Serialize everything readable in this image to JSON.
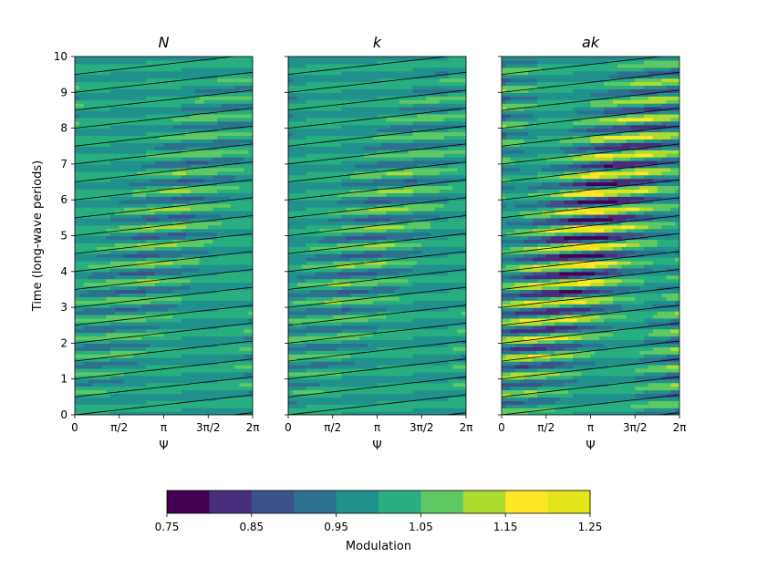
{
  "chart_data": [
    {
      "type": "heatmap",
      "title": "N",
      "xlabel": "Ψ",
      "ylabel": "Time (long-wave periods)",
      "x_ticks": [
        "0",
        "π/2",
        "π",
        "3π/2",
        "2π"
      ],
      "y_ticks": [
        "0",
        "1",
        "2",
        "3",
        "4",
        "5",
        "6",
        "7",
        "8",
        "9",
        "10"
      ],
      "xlim": [
        0,
        6.2832
      ],
      "ylim": [
        0,
        10
      ],
      "max_amplitude": 0.12,
      "grid": false
    },
    {
      "type": "heatmap",
      "title": "k",
      "xlabel": "Ψ",
      "x_ticks": [
        "0",
        "π/2",
        "π",
        "3π/2",
        "2π"
      ],
      "xlim": [
        0,
        6.2832
      ],
      "ylim": [
        0,
        10
      ],
      "max_amplitude": 0.12,
      "grid": false
    },
    {
      "type": "heatmap",
      "title": "ak",
      "xlabel": "Ψ",
      "x_ticks": [
        "0",
        "π/2",
        "π",
        "3π/2",
        "2π"
      ],
      "xlim": [
        0,
        6.2832
      ],
      "ylim": [
        0,
        10
      ],
      "max_amplitude": 0.25,
      "grid": false
    }
  ],
  "colorbar": {
    "label": "Modulation",
    "range": [
      0.75,
      1.25
    ],
    "levels": [
      0.75,
      0.8,
      0.85,
      0.9,
      0.95,
      1.0,
      1.05,
      1.1,
      1.15,
      1.2,
      1.25
    ],
    "tick_labels": [
      "0.75",
      "0.85",
      "0.95",
      "1.05",
      "1.15",
      "1.25"
    ],
    "colors": [
      "#440154",
      "#472d7b",
      "#3b528b",
      "#2c728e",
      "#21918c",
      "#28ae80",
      "#5ec962",
      "#addc30",
      "#fde725",
      "#e3e419"
    ]
  }
}
